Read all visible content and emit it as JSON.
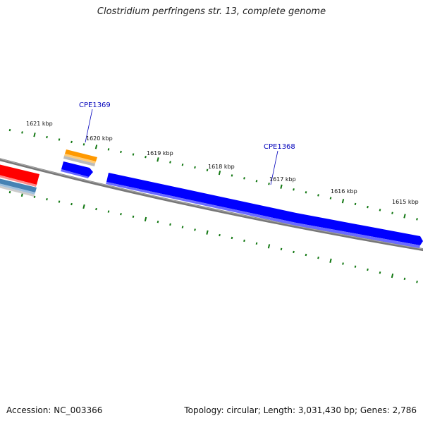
{
  "title": "Clostridium perfringens str. 13, complete genome",
  "footer": {
    "accession": "Accession: NC_003366",
    "summary": "Topology: circular; Length: 3,031,430 bp; Genes: 2,786"
  },
  "ticks": [
    {
      "label": "1621 kbp"
    },
    {
      "label": "1620 kbp"
    },
    {
      "label": "1619 kbp"
    },
    {
      "label": "1618 kbp"
    },
    {
      "label": "1617 kbp"
    },
    {
      "label": "1616 kbp"
    },
    {
      "label": "1615 kbp"
    }
  ],
  "genes": [
    {
      "label": "CPE1369"
    },
    {
      "label": "CPE1368"
    }
  ],
  "colors": {
    "backbone": "#777777",
    "cds": "#0000ff",
    "trna_red": "#ff0000",
    "misc_orange": "#ff9900",
    "steelblue": "#4682b4",
    "tick": "#117711"
  }
}
